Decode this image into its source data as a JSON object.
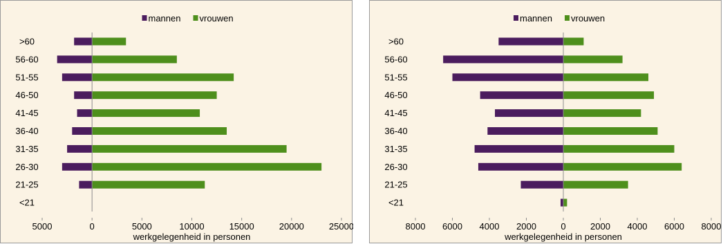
{
  "colors": {
    "mannen": "#4b1c5e",
    "vrouwen": "#4e8f1c",
    "axis": "#8c8c8c",
    "background": "#fbf3e4"
  },
  "chart_data": [
    {
      "type": "bar",
      "orientation": "horizontal",
      "style": "population-pyramid",
      "categories": [
        ">60",
        "56-60",
        "51-55",
        "46-50",
        "41-45",
        "36-40",
        "31-35",
        "26-30",
        "21-25",
        "<21"
      ],
      "series": [
        {
          "name": "mannen",
          "values": [
            -1800,
            -3500,
            -3000,
            -1800,
            -1500,
            -2000,
            -2500,
            -3000,
            -1300,
            0
          ]
        },
        {
          "name": "vrouwen",
          "values": [
            3400,
            8500,
            14200,
            12500,
            10800,
            13500,
            19500,
            23000,
            11300,
            0
          ]
        }
      ],
      "xlabel": "werkgelegenheid in personen",
      "xlim": [
        -5000,
        25000
      ],
      "x_ticks": [
        -5000,
        0,
        5000,
        10000,
        15000,
        20000,
        25000
      ],
      "x_tick_labels": [
        "5000",
        "0",
        "5000",
        "10000",
        "15000",
        "20000",
        "25000"
      ],
      "legend": "top-center",
      "grid": false
    },
    {
      "type": "bar",
      "orientation": "horizontal",
      "style": "population-pyramid",
      "categories": [
        ">60",
        "56-60",
        "51-55",
        "46-50",
        "41-45",
        "36-40",
        "31-35",
        "26-30",
        "21-25",
        "<21"
      ],
      "series": [
        {
          "name": "mannen",
          "values": [
            -3500,
            -6500,
            -6000,
            -4500,
            -3700,
            -4100,
            -4800,
            -4600,
            -2300,
            -150
          ]
        },
        {
          "name": "vrouwen",
          "values": [
            1100,
            3200,
            4600,
            4900,
            4200,
            5100,
            6000,
            6400,
            3500,
            200
          ]
        }
      ],
      "xlabel": "werkgelegenheid in personen",
      "xlim": [
        -8000,
        8000
      ],
      "x_ticks": [
        -8000,
        -6000,
        -4000,
        -2000,
        0,
        2000,
        4000,
        6000,
        8000
      ],
      "x_tick_labels": [
        "8000",
        "6000",
        "4000",
        "2000",
        "0",
        "2000",
        "4000",
        "6000",
        "8000"
      ],
      "legend": "top-center",
      "grid": false
    }
  ]
}
